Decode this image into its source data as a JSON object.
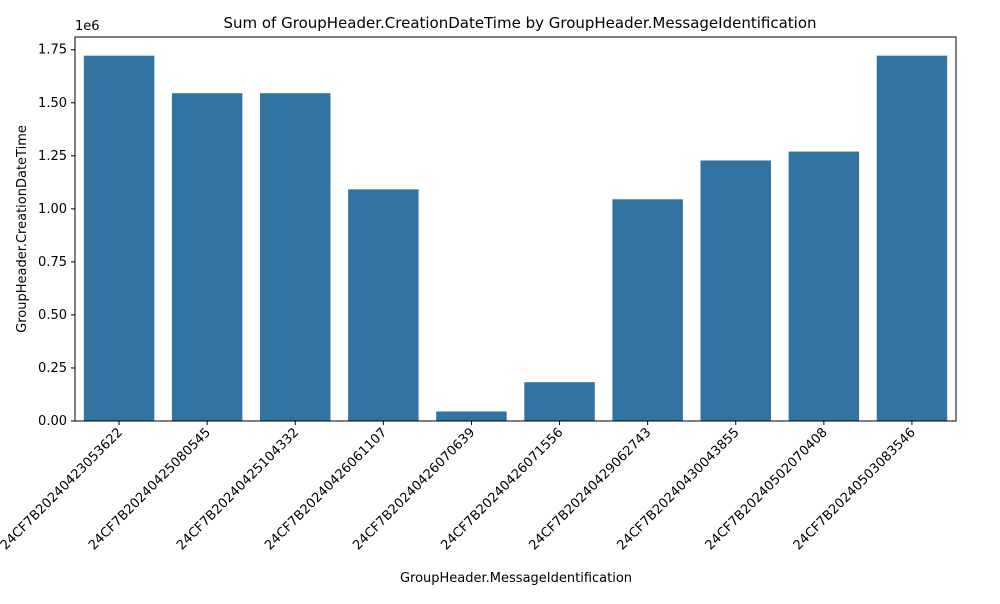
{
  "chart_data": {
    "type": "bar",
    "title": "Sum of GroupHeader.CreationDateTime by GroupHeader.MessageIdentification",
    "xlabel": "GroupHeader.MessageIdentification",
    "ylabel": "GroupHeader.CreationDateTime",
    "offset_label": "1e6",
    "categories": [
      "24CF7B20240423053622",
      "24CF7B20240425080545",
      "24CF7B20240425104332",
      "24CF7B20240426061107",
      "24CF7B20240426070639",
      "24CF7B20240426071556",
      "24CF7B20240429062743",
      "24CF7B20240430043855",
      "24CF7B20240502070408",
      "24CF7B20240503083546"
    ],
    "values": [
      1722000,
      1545000,
      1545000,
      1092000,
      45000,
      183000,
      1045000,
      1228000,
      1270000,
      1722000
    ],
    "ylim": [
      0,
      1810000
    ],
    "yticks": [
      0,
      250000,
      500000,
      750000,
      1000000,
      1250000,
      1500000,
      1750000
    ],
    "ytick_labels": [
      "0.00",
      "0.25",
      "0.50",
      "0.75",
      "1.00",
      "1.25",
      "1.50",
      "1.75"
    ],
    "bar_color": "#3274a1",
    "grid": false,
    "legend": "none"
  }
}
